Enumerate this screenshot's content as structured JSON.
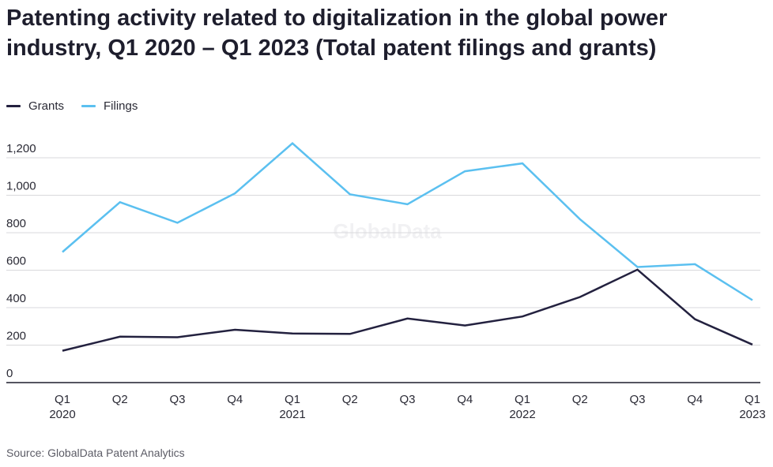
{
  "title": "Patenting activity related to digitalization in the global power industry, Q1 2020 – Q1 2023 (Total patent filings and grants)",
  "source": "Source: GlobalData Patent Analytics",
  "watermark": "GlobalData",
  "colors": {
    "grants": "#23213f",
    "filings": "#5bc0f0",
    "grid": "#d9d9dc",
    "axis": "#1d1d2c"
  },
  "chart_data": {
    "type": "line",
    "categories": [
      "Q1 2020",
      "Q2",
      "Q3",
      "Q4",
      "Q1 2021",
      "Q2",
      "Q3",
      "Q4",
      "Q1 2022",
      "Q2",
      "Q3",
      "Q4",
      "Q1 2023"
    ],
    "x_labels": [
      [
        "Q1",
        "2020"
      ],
      [
        "Q2",
        ""
      ],
      [
        "Q3",
        ""
      ],
      [
        "Q4",
        ""
      ],
      [
        "Q1",
        "2021"
      ],
      [
        "Q2",
        ""
      ],
      [
        "Q3",
        ""
      ],
      [
        "Q4",
        ""
      ],
      [
        "Q1",
        "2022"
      ],
      [
        "Q2",
        ""
      ],
      [
        "Q3",
        ""
      ],
      [
        "Q4",
        ""
      ],
      [
        "Q1",
        "2023"
      ]
    ],
    "series": [
      {
        "name": "Grants",
        "color": "#23213f",
        "values": [
          170,
          245,
          242,
          282,
          262,
          260,
          342,
          305,
          353,
          457,
          603,
          338,
          203
        ]
      },
      {
        "name": "Filings",
        "color": "#5bc0f0",
        "values": [
          697,
          963,
          853,
          1010,
          1277,
          1005,
          952,
          1128,
          1170,
          872,
          617,
          632,
          440
        ]
      }
    ],
    "y_ticks": [
      0,
      200,
      400,
      600,
      800,
      1000,
      1200
    ],
    "y_tick_labels": [
      "0",
      "200",
      "400",
      "600",
      "800",
      "1,000",
      "1,200"
    ],
    "ylim": [
      0,
      1200
    ],
    "grid": true,
    "legend_position": "top-left"
  }
}
